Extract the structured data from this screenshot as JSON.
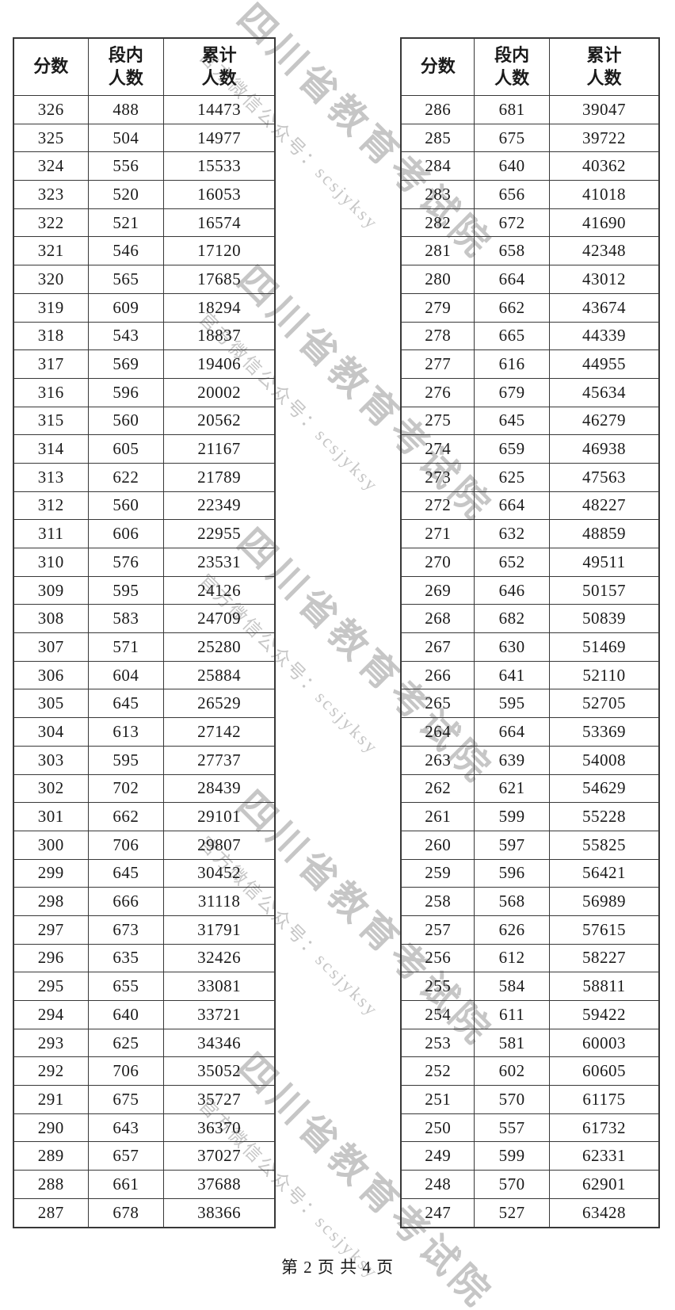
{
  "page": {
    "footer": "第 2 页 共 4 页",
    "watermark": {
      "line_big": "四川省教育考试院",
      "line_small": "官方微信公众号：scsjyksy"
    },
    "colors": {
      "text": "#1a1a1a",
      "border": "#383838",
      "watermark": "#c6c6c6"
    }
  },
  "tables": [
    {
      "headers": [
        "分数",
        "段内\n人数",
        "累计\n人数"
      ],
      "rows": [
        [
          326,
          488,
          14473
        ],
        [
          325,
          504,
          14977
        ],
        [
          324,
          556,
          15533
        ],
        [
          323,
          520,
          16053
        ],
        [
          322,
          521,
          16574
        ],
        [
          321,
          546,
          17120
        ],
        [
          320,
          565,
          17685
        ],
        [
          319,
          609,
          18294
        ],
        [
          318,
          543,
          18837
        ],
        [
          317,
          569,
          19406
        ],
        [
          316,
          596,
          20002
        ],
        [
          315,
          560,
          20562
        ],
        [
          314,
          605,
          21167
        ],
        [
          313,
          622,
          21789
        ],
        [
          312,
          560,
          22349
        ],
        [
          311,
          606,
          22955
        ],
        [
          310,
          576,
          23531
        ],
        [
          309,
          595,
          24126
        ],
        [
          308,
          583,
          24709
        ],
        [
          307,
          571,
          25280
        ],
        [
          306,
          604,
          25884
        ],
        [
          305,
          645,
          26529
        ],
        [
          304,
          613,
          27142
        ],
        [
          303,
          595,
          27737
        ],
        [
          302,
          702,
          28439
        ],
        [
          301,
          662,
          29101
        ],
        [
          300,
          706,
          29807
        ],
        [
          299,
          645,
          30452
        ],
        [
          298,
          666,
          31118
        ],
        [
          297,
          673,
          31791
        ],
        [
          296,
          635,
          32426
        ],
        [
          295,
          655,
          33081
        ],
        [
          294,
          640,
          33721
        ],
        [
          293,
          625,
          34346
        ],
        [
          292,
          706,
          35052
        ],
        [
          291,
          675,
          35727
        ],
        [
          290,
          643,
          36370
        ],
        [
          289,
          657,
          37027
        ],
        [
          288,
          661,
          37688
        ],
        [
          287,
          678,
          38366
        ]
      ]
    },
    {
      "headers": [
        "分数",
        "段内\n人数",
        "累计\n人数"
      ],
      "rows": [
        [
          286,
          681,
          39047
        ],
        [
          285,
          675,
          39722
        ],
        [
          284,
          640,
          40362
        ],
        [
          283,
          656,
          41018
        ],
        [
          282,
          672,
          41690
        ],
        [
          281,
          658,
          42348
        ],
        [
          280,
          664,
          43012
        ],
        [
          279,
          662,
          43674
        ],
        [
          278,
          665,
          44339
        ],
        [
          277,
          616,
          44955
        ],
        [
          276,
          679,
          45634
        ],
        [
          275,
          645,
          46279
        ],
        [
          274,
          659,
          46938
        ],
        [
          273,
          625,
          47563
        ],
        [
          272,
          664,
          48227
        ],
        [
          271,
          632,
          48859
        ],
        [
          270,
          652,
          49511
        ],
        [
          269,
          646,
          50157
        ],
        [
          268,
          682,
          50839
        ],
        [
          267,
          630,
          51469
        ],
        [
          266,
          641,
          52110
        ],
        [
          265,
          595,
          52705
        ],
        [
          264,
          664,
          53369
        ],
        [
          263,
          639,
          54008
        ],
        [
          262,
          621,
          54629
        ],
        [
          261,
          599,
          55228
        ],
        [
          260,
          597,
          55825
        ],
        [
          259,
          596,
          56421
        ],
        [
          258,
          568,
          56989
        ],
        [
          257,
          626,
          57615
        ],
        [
          256,
          612,
          58227
        ],
        [
          255,
          584,
          58811
        ],
        [
          254,
          611,
          59422
        ],
        [
          253,
          581,
          60003
        ],
        [
          252,
          602,
          60605
        ],
        [
          251,
          570,
          61175
        ],
        [
          250,
          557,
          61732
        ],
        [
          249,
          599,
          62331
        ],
        [
          248,
          570,
          62901
        ],
        [
          247,
          527,
          63428
        ]
      ]
    }
  ]
}
